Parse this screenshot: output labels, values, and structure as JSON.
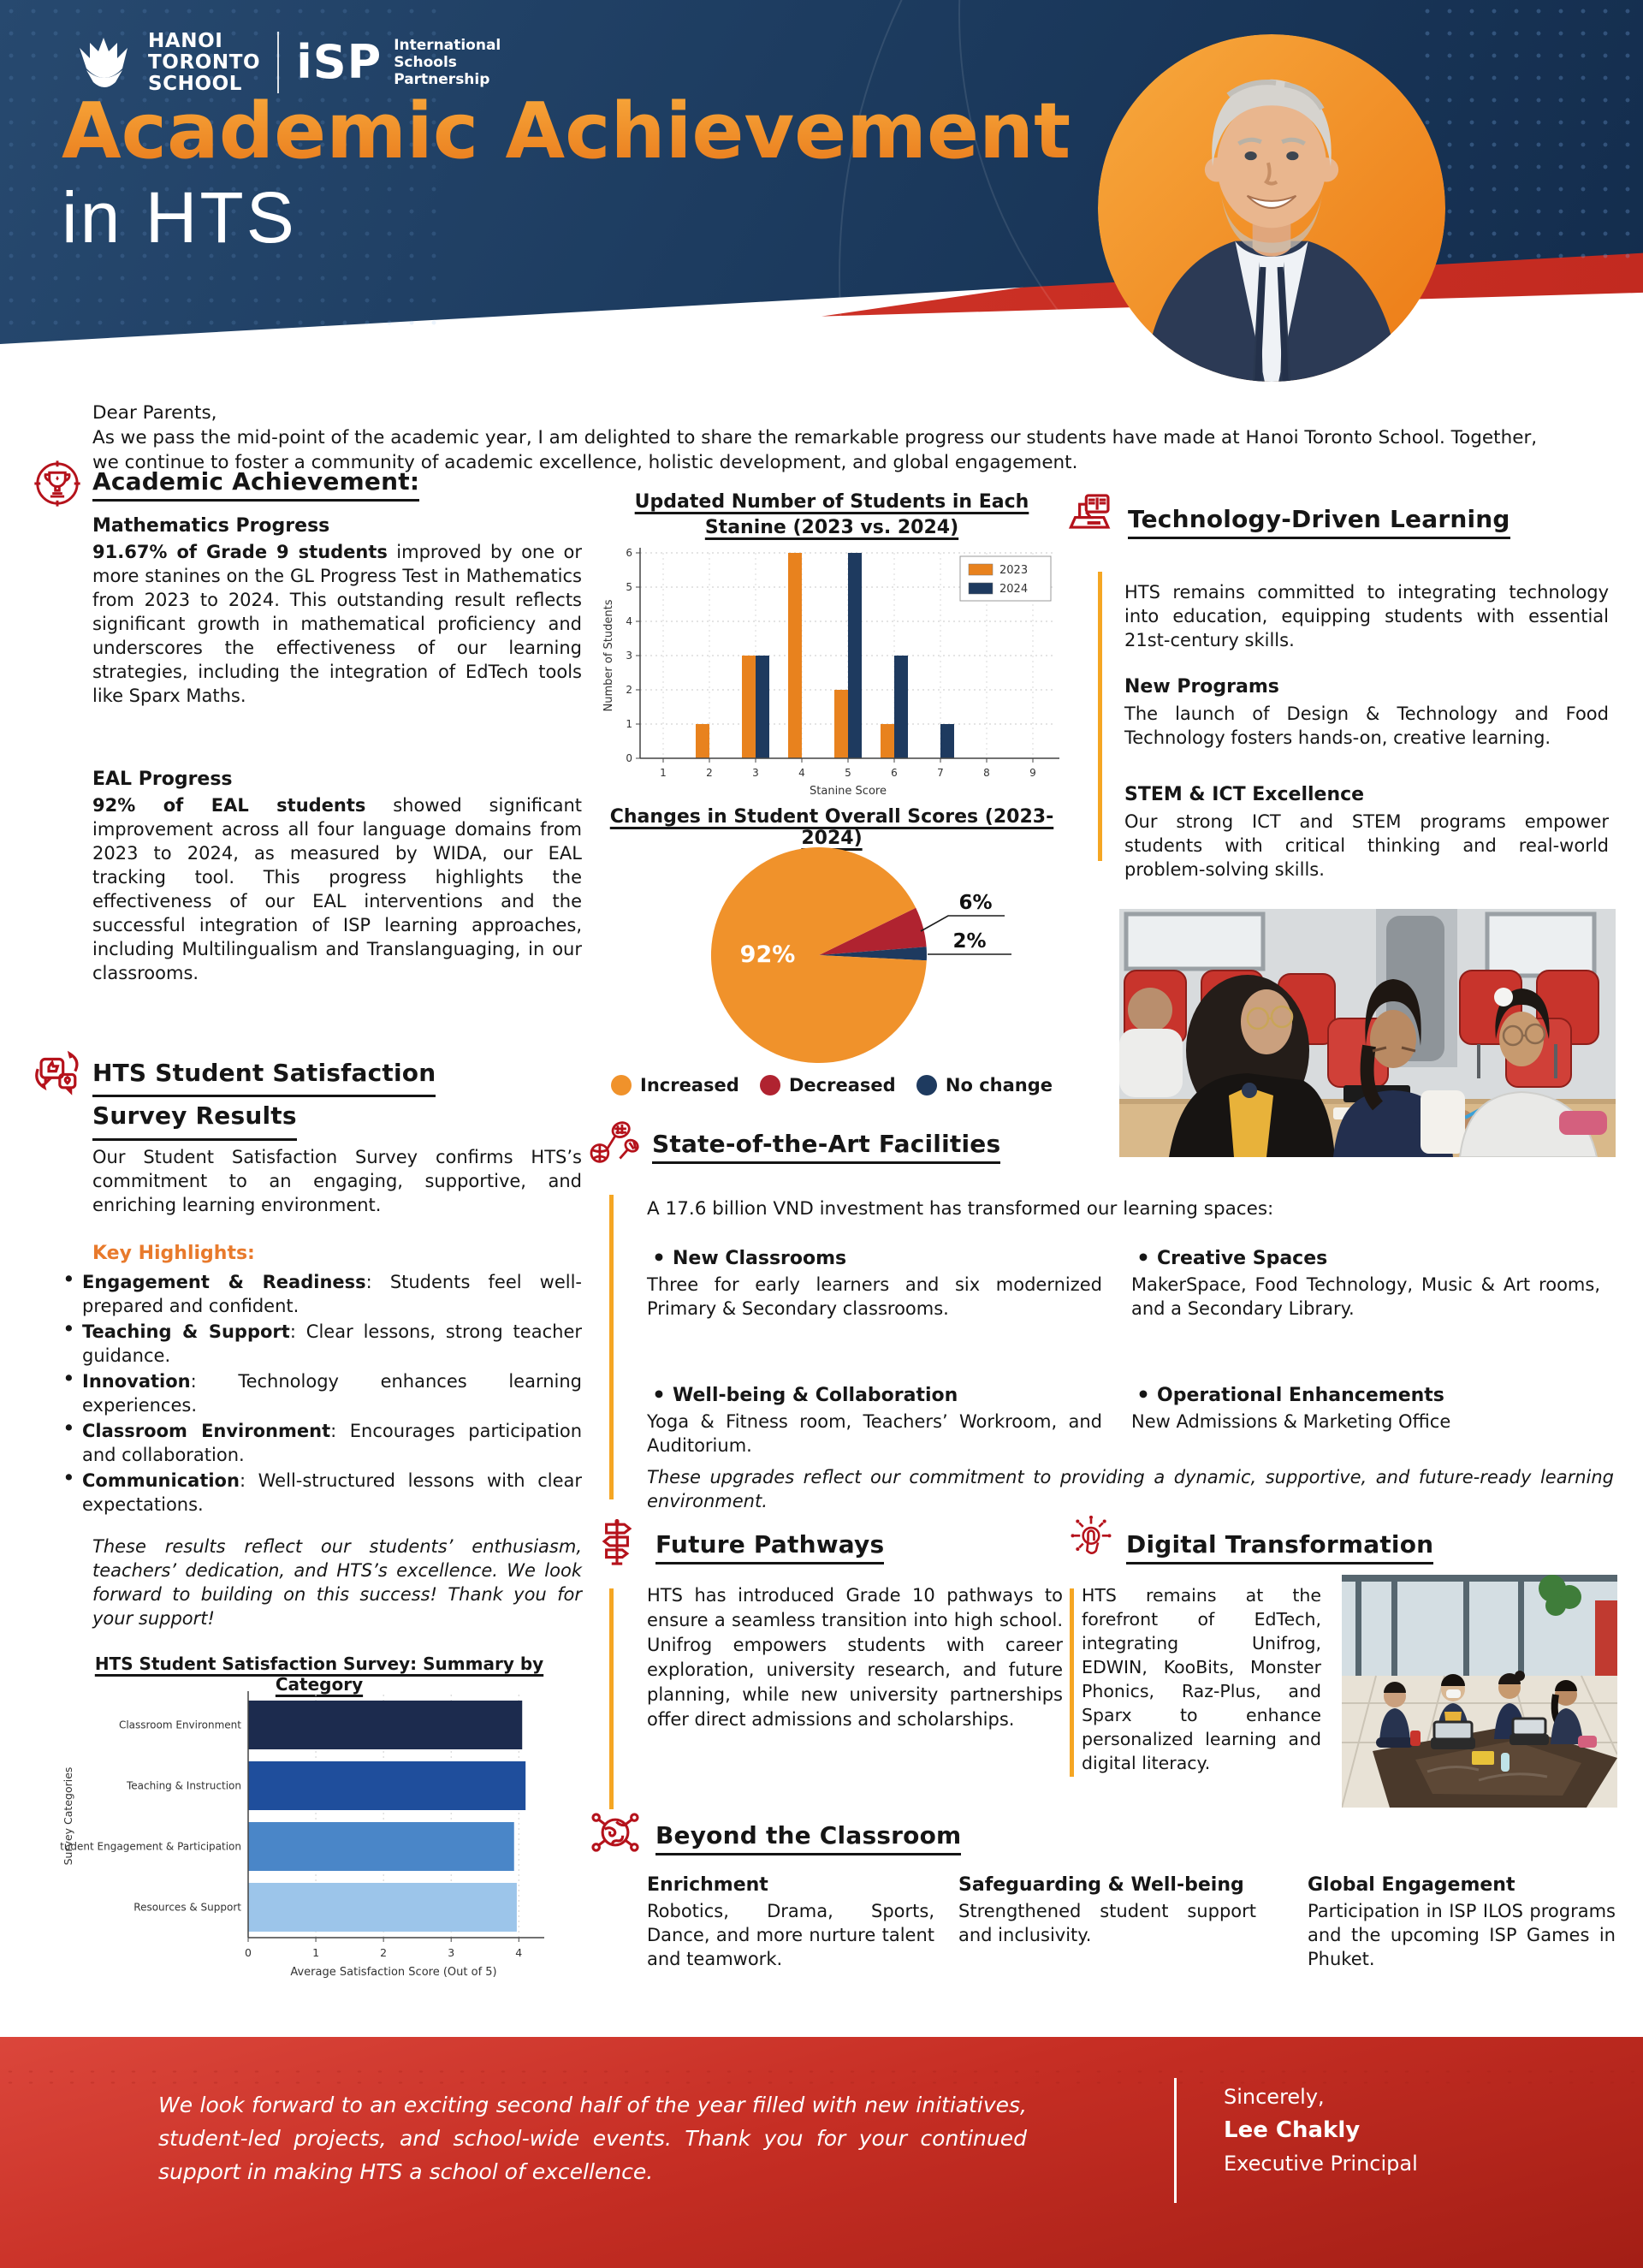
{
  "header": {
    "logo": {
      "school_line1": "HANOI",
      "school_line2": "TORONTO",
      "school_line3": "SCHOOL",
      "isp_acronym": "iSP",
      "isp_line1": "International",
      "isp_line2": "Schools",
      "isp_line3": "Partnership"
    },
    "title_line1": "Academic Achievement",
    "title_line2": "in HTS"
  },
  "intro": {
    "salutation": "Dear Parents,",
    "body": "As we pass the mid-point of the academic year, I am delighted to share the remarkable progress our students have made at Hanoi Toronto School. Together, we continue to foster a community of academic excellence, holistic development, and global engagement."
  },
  "sections": {
    "academic": {
      "heading": "Academic Achievement:",
      "math_title": "Mathematics Progress",
      "math_lead": "91.67% of Grade 9 students",
      "math_body": " improved by one or more stanines on the GL Progress Test in Mathematics from 2023 to 2024. This outstanding result reflects significant growth in mathematical proficiency and underscores the effectiveness of our learning strategies, including the integration of EdTech tools like Sparx Maths.",
      "eal_title": "EAL Progress",
      "eal_lead": "92% of EAL students",
      "eal_body": " showed significant improvement across all four language domains from 2023 to 2024, as measured by WIDA, our EAL tracking tool. This progress highlights the effectiveness of our EAL interventions and the successful integration of ISP learning approaches, including Multilingualism and Translanguaging, in our classrooms."
    },
    "satisfaction": {
      "heading_line1": "HTS Student Satisfaction",
      "heading_line2": "Survey Results",
      "intro": "Our Student Satisfaction Survey confirms HTS’s commitment to an engaging, supportive, and enriching learning environment.",
      "key_highlights_label": "Key Highlights:",
      "bullets": [
        {
          "lead": "Engagement & Readiness",
          "text": ": Students feel well-prepared and confident."
        },
        {
          "lead": "Teaching & Support",
          "text": ": Clear lessons, strong teacher guidance."
        },
        {
          "lead": "Innovation",
          "text": ": Technology enhances learning experiences."
        },
        {
          "lead": "Classroom Environment",
          "text": ": Encourages participation and collaboration."
        },
        {
          "lead": "Communication",
          "text": ": Well-structured lessons with clear expectations."
        }
      ],
      "closing": "These results reflect our students’ enthusiasm, teachers’ dedication, and HTS’s excellence. We look forward to building on this success! Thank you for your support!"
    },
    "technology": {
      "heading": "Technology-Driven Learning",
      "intro": "HTS remains committed to integrating technology into education, equipping students with essential 21st-century skills.",
      "programs_title": "New Programs",
      "programs_body": "The launch of Design & Technology and Food Technology fosters hands-on, creative learning.",
      "stem_title": "STEM & ICT Excellence",
      "stem_body": "Our strong ICT and STEM programs empower students with critical thinking and real-world problem-solving skills."
    },
    "facilities": {
      "heading": "State-of-the-Art Facilities",
      "intro": "A 17.6 billion VND investment has transformed our learning spaces:",
      "bullets": [
        {
          "title": "New Classrooms",
          "text": "Three for early learners and six modernized Primary & Secondary classrooms."
        },
        {
          "title": "Creative Spaces",
          "text": "MakerSpace, Food Technology, Music & Art rooms, and a Secondary Library."
        },
        {
          "title": "Well-being & Collaboration",
          "text": "Yoga & Fitness room, Teachers’ Workroom, and Auditorium."
        },
        {
          "title": "Operational Enhancements",
          "text": "New Admissions & Marketing Office"
        }
      ],
      "closing": "These upgrades reflect our commitment to providing a dynamic, supportive, and future-ready learning environment."
    },
    "pathways": {
      "heading": "Future Pathways",
      "body": "HTS has introduced Grade 10 pathways to ensure a seamless transition into high school. Unifrog empowers students with career exploration, university research, and future planning, while new university partnerships offer direct admissions and scholarships."
    },
    "digital": {
      "heading": "Digital Transformation",
      "body": "HTS remains at the forefront of EdTech, integrating Unifrog, EDWIN, KooBits, Monster Phonics, Raz-Plus, and Sparx to enhance personalized learning and digital literacy."
    },
    "beyond": {
      "heading": "Beyond the Classroom",
      "columns": [
        {
          "title": "Enrichment",
          "text": "Robotics, Drama, Sports, Dance, and more nurture talent and teamwork."
        },
        {
          "title": "Safeguarding & Well-being",
          "text": "Strengthened student support and inclusivity."
        },
        {
          "title": "Global Engagement",
          "text": "Participation in ISP ILOS programs and the upcoming ISP Games in Phuket."
        }
      ]
    }
  },
  "footer": {
    "message": "We look forward to an exciting second half of the year filled with new initiatives, student-led projects, and school-wide events. Thank you for your continued support in making HTS a school of excellence.",
    "signoff": "Sincerely,",
    "name": "Lee Chakly",
    "role": "Executive Principal"
  },
  "icons": {
    "academic": "trophy-icon",
    "satisfaction": "feedback-bubbles-icon",
    "technology": "laptop-book-icon",
    "facilities": "sports-equipment-icon",
    "pathways": "signpost-icon",
    "digital": "digital-touch-icon",
    "beyond": "global-network-icon"
  },
  "colors": {
    "navy": "#1D3C60",
    "accent_orange": "#F0911F",
    "line_orange": "#F5A623",
    "icon_red": "#B5121B",
    "footer_red": "#C62E24",
    "key_highlights_orange": "#E87A2C"
  },
  "chart_data": [
    {
      "type": "bar",
      "title": "Updated Number of Students in Each Stanine (2023 vs. 2024)",
      "categories": [
        "1",
        "2",
        "3",
        "4",
        "5",
        "6",
        "7",
        "8",
        "9"
      ],
      "series": [
        {
          "name": "2023",
          "color": "#E8821E",
          "values": [
            0,
            1,
            3,
            6,
            2,
            1,
            0,
            0,
            0
          ]
        },
        {
          "name": "2024",
          "color": "#1E3A5F",
          "values": [
            0,
            0,
            3,
            0,
            6,
            3,
            1,
            0,
            0
          ]
        }
      ],
      "xlabel": "Stanine Score",
      "ylabel": "Number of Students",
      "ylim": [
        0,
        6
      ],
      "grid": true,
      "legend_position": "top-right"
    },
    {
      "type": "pie",
      "title": "Changes in Student Overall Scores (2023-2024)",
      "labels": [
        "Increased",
        "Decreased",
        "No change"
      ],
      "values": [
        92,
        6,
        2
      ],
      "colors": [
        "#F0922B",
        "#B02330",
        "#1E3A5F"
      ],
      "legend_position": "bottom"
    },
    {
      "type": "bar",
      "orientation": "horizontal",
      "title": "HTS Student Satisfaction Survey: Summary by Category",
      "categories": [
        "Classroom Environment",
        "Teaching & Instruction",
        "Student Engagement & Participation",
        "Resources & Support"
      ],
      "values": [
        4.05,
        4.1,
        3.93,
        3.97
      ],
      "colors": [
        "#1C2B4E",
        "#1F4E9C",
        "#4A86C8",
        "#9CC5EA"
      ],
      "xlabel": "Average Satisfaction Score (Out of 5)",
      "ylabel": "Survey Categories",
      "xlim": [
        0,
        4.3
      ],
      "grid": true
    }
  ]
}
